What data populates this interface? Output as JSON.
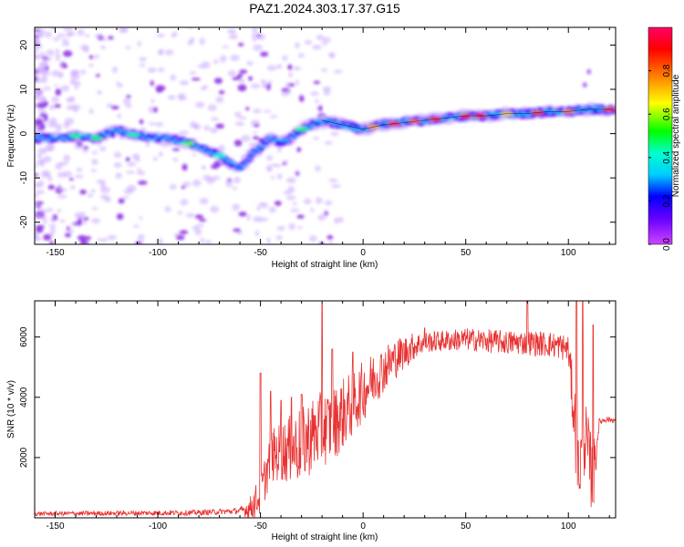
{
  "chart_data": [
    {
      "type": "heatmap",
      "title": "PAZ1.2024.303.17.37.G15",
      "xlabel": "Height of straight line (km)",
      "ylabel": "Frequency (Hz)",
      "xlim": [
        -160,
        123
      ],
      "ylim": [
        -25,
        24
      ],
      "xticks": [
        -150,
        -100,
        -50,
        0,
        50,
        100
      ],
      "yticks": [
        -20,
        -10,
        0,
        10,
        20
      ],
      "colorbar": {
        "label": "Normalized spectral amplitude",
        "range": [
          0,
          1
        ],
        "ticks": [
          0.0,
          0.2,
          0.4,
          0.6,
          0.8
        ]
      },
      "ridge": {
        "x": [
          -160,
          -150,
          -140,
          -130,
          -120,
          -110,
          -100,
          -90,
          -80,
          -70,
          -60,
          -55,
          -50,
          -45,
          -40,
          -35,
          -30,
          -25,
          -20,
          -10,
          0,
          10,
          20,
          30,
          40,
          50,
          60,
          70,
          80,
          90,
          100,
          110,
          115,
          123
        ],
        "y": [
          -1,
          -1,
          -0.5,
          -1,
          1,
          -0.5,
          -1,
          -1.5,
          -3,
          -5,
          -8,
          -5,
          -3,
          -1,
          -2,
          -1,
          1,
          2,
          3,
          2,
          1,
          2,
          2.5,
          3,
          3.5,
          4,
          4,
          4.5,
          4.5,
          5,
          5,
          5.5,
          5.5,
          5.5
        ]
      }
    },
    {
      "type": "line",
      "xlabel": "Height of straight line (km)",
      "ylabel": "SNR (10 * v/v)",
      "xlim": [
        -160,
        123
      ],
      "ylim": [
        0,
        7200
      ],
      "xticks": [
        -150,
        -100,
        -50,
        0,
        50,
        100
      ],
      "yticks": [
        2000,
        4000,
        6000
      ],
      "color": "#e83232",
      "envelope": {
        "x": [
          -160,
          -140,
          -120,
          -100,
          -80,
          -60,
          -55,
          -50,
          -45,
          -40,
          -35,
          -30,
          -25,
          -20,
          -15,
          -10,
          -5,
          0,
          5,
          10,
          15,
          20,
          25,
          30,
          40,
          50,
          60,
          70,
          80,
          90,
          95,
          100,
          103,
          105,
          108,
          110,
          112,
          115,
          118,
          123
        ],
        "y": [
          150,
          160,
          170,
          180,
          190,
          250,
          400,
          900,
          2200,
          2400,
          2500,
          2700,
          3000,
          3200,
          3300,
          3700,
          4000,
          4400,
          4800,
          5100,
          5400,
          5600,
          5800,
          5900,
          5950,
          6000,
          5950,
          5900,
          5900,
          5850,
          5800,
          5700,
          3500,
          1800,
          3000,
          2200,
          1500,
          3200,
          3300,
          3250
        ]
      },
      "noise": {
        "x": [
          -160,
          -60,
          -50,
          -30,
          -10,
          10,
          30,
          100,
          103,
          112,
          115,
          123
        ],
        "y": [
          70,
          100,
          700,
          1300,
          1200,
          800,
          350,
          450,
          1300,
          1300,
          120,
          90
        ]
      },
      "spikes": {
        "x": [
          -50,
          -45,
          -40,
          -35,
          -30,
          -20,
          -15,
          -5,
          30,
          80,
          104,
          107,
          112
        ],
        "y": [
          4800,
          4200,
          3900,
          4000,
          4100,
          7100,
          5600,
          5500,
          6300,
          7200,
          7200,
          7200,
          6400
        ]
      }
    }
  ]
}
